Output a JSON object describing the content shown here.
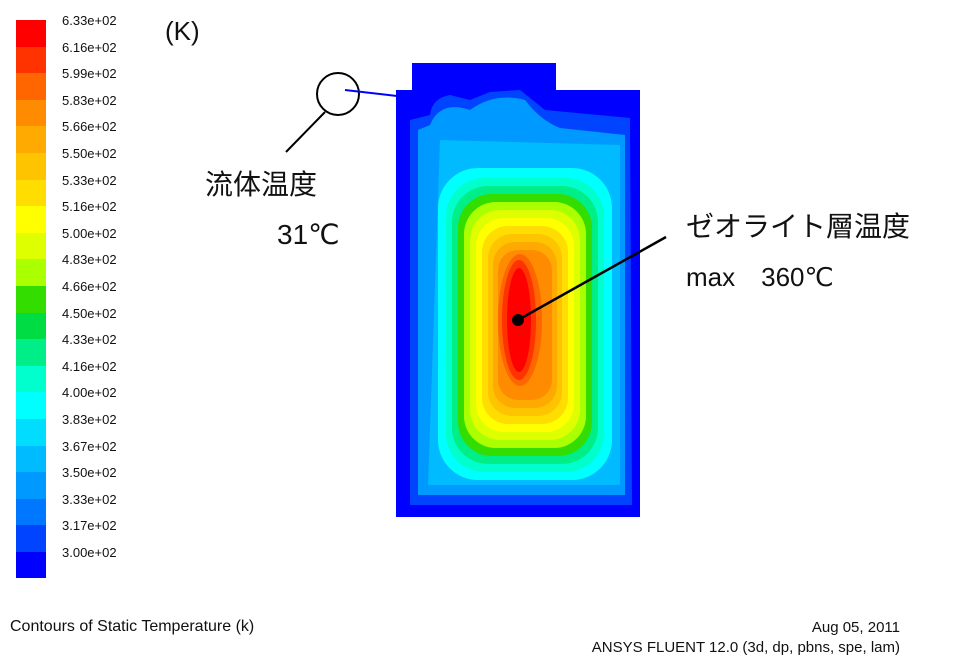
{
  "legend": {
    "unit": "(K)",
    "levels": [
      {
        "label": "6.33e+02",
        "color": "#ff0000"
      },
      {
        "label": "6.16e+02",
        "color": "#ff3300"
      },
      {
        "label": "5.99e+02",
        "color": "#ff6600"
      },
      {
        "label": "5.83e+02",
        "color": "#ff8c00"
      },
      {
        "label": "5.66e+02",
        "color": "#ffaa00"
      },
      {
        "label": "5.50e+02",
        "color": "#ffc400"
      },
      {
        "label": "5.33e+02",
        "color": "#ffdd00"
      },
      {
        "label": "5.16e+02",
        "color": "#ffff00"
      },
      {
        "label": "5.00e+02",
        "color": "#ddff00"
      },
      {
        "label": "4.83e+02",
        "color": "#aaff00"
      },
      {
        "label": "4.66e+02",
        "color": "#33dd00"
      },
      {
        "label": "4.50e+02",
        "color": "#00dd44"
      },
      {
        "label": "4.33e+02",
        "color": "#00ee88"
      },
      {
        "label": "4.16e+02",
        "color": "#00ffcc"
      },
      {
        "label": "4.00e+02",
        "color": "#00ffff"
      },
      {
        "label": "3.83e+02",
        "color": "#00ddff"
      },
      {
        "label": "3.67e+02",
        "color": "#00bbff"
      },
      {
        "label": "3.50e+02",
        "color": "#0099ff"
      },
      {
        "label": "3.33e+02",
        "color": "#0077ff"
      },
      {
        "label": "3.17e+02",
        "color": "#0044ff"
      },
      {
        "label": "3.00e+02",
        "color": "#0000ff"
      }
    ]
  },
  "callouts": {
    "fluid": {
      "title": "流体温度",
      "value": "31℃"
    },
    "zeolite": {
      "title": "ゼオライト層温度",
      "value": "max　360℃"
    }
  },
  "footer": {
    "left": "Contours of Static Temperature (k)",
    "date": "Aug 05, 2011",
    "software": "ANSYS FLUENT 12.0 (3d, dp, pbns, spe, lam)"
  }
}
